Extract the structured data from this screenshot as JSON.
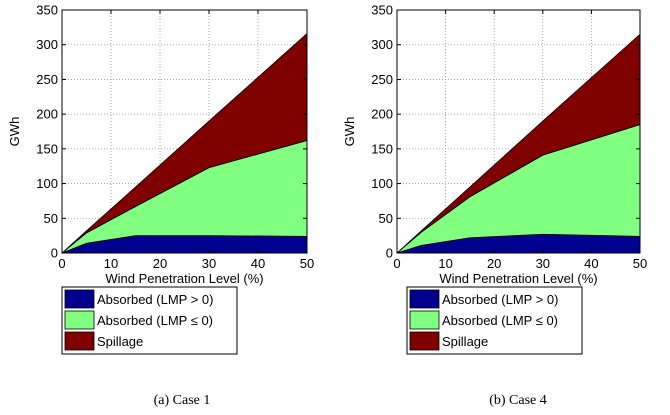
{
  "chart_data": [
    {
      "type": "area",
      "caption": "(a) Case 1",
      "xlabel": "Wind Penetration Level (%)",
      "ylabel": "GWh",
      "xlim": [
        0,
        50
      ],
      "ylim": [
        0,
        350
      ],
      "xticks": [
        0,
        10,
        20,
        30,
        40,
        50
      ],
      "yticks": [
        0,
        50,
        100,
        150,
        200,
        250,
        300,
        350
      ],
      "grid": true,
      "stacked": true,
      "x": [
        0,
        5,
        15,
        30,
        50
      ],
      "series": [
        {
          "name": "Absorbed (LMP > 0)",
          "color": "#00008f",
          "values": [
            0,
            14,
            25,
            25,
            24
          ]
        },
        {
          "name": "Absorbed (LMP ≤ 0)",
          "color": "#80ff80",
          "values": [
            0,
            15,
            42,
            98,
            138
          ]
        },
        {
          "name": "Spillage",
          "color": "#800000",
          "values": [
            0,
            3,
            28,
            67,
            154
          ]
        }
      ],
      "legend_position": "below"
    },
    {
      "type": "area",
      "caption": "(b) Case 4",
      "xlabel": "Wind Penetration Level (%)",
      "ylabel": "GWh",
      "xlim": [
        0,
        50
      ],
      "ylim": [
        0,
        350
      ],
      "xticks": [
        0,
        10,
        20,
        30,
        40,
        50
      ],
      "yticks": [
        0,
        50,
        100,
        150,
        200,
        250,
        300,
        350
      ],
      "grid": true,
      "stacked": true,
      "x": [
        0,
        5,
        15,
        30,
        50
      ],
      "series": [
        {
          "name": "Absorbed (LMP > 0)",
          "color": "#00008f",
          "values": [
            0,
            11,
            22,
            27,
            24
          ]
        },
        {
          "name": "Absorbed (LMP ≤ 0)",
          "color": "#80ff80",
          "values": [
            0,
            19,
            59,
            114,
            161
          ]
        },
        {
          "name": "Spillage",
          "color": "#800000",
          "values": [
            0,
            2,
            14,
            49,
            130
          ]
        }
      ],
      "legend_position": "below"
    }
  ]
}
